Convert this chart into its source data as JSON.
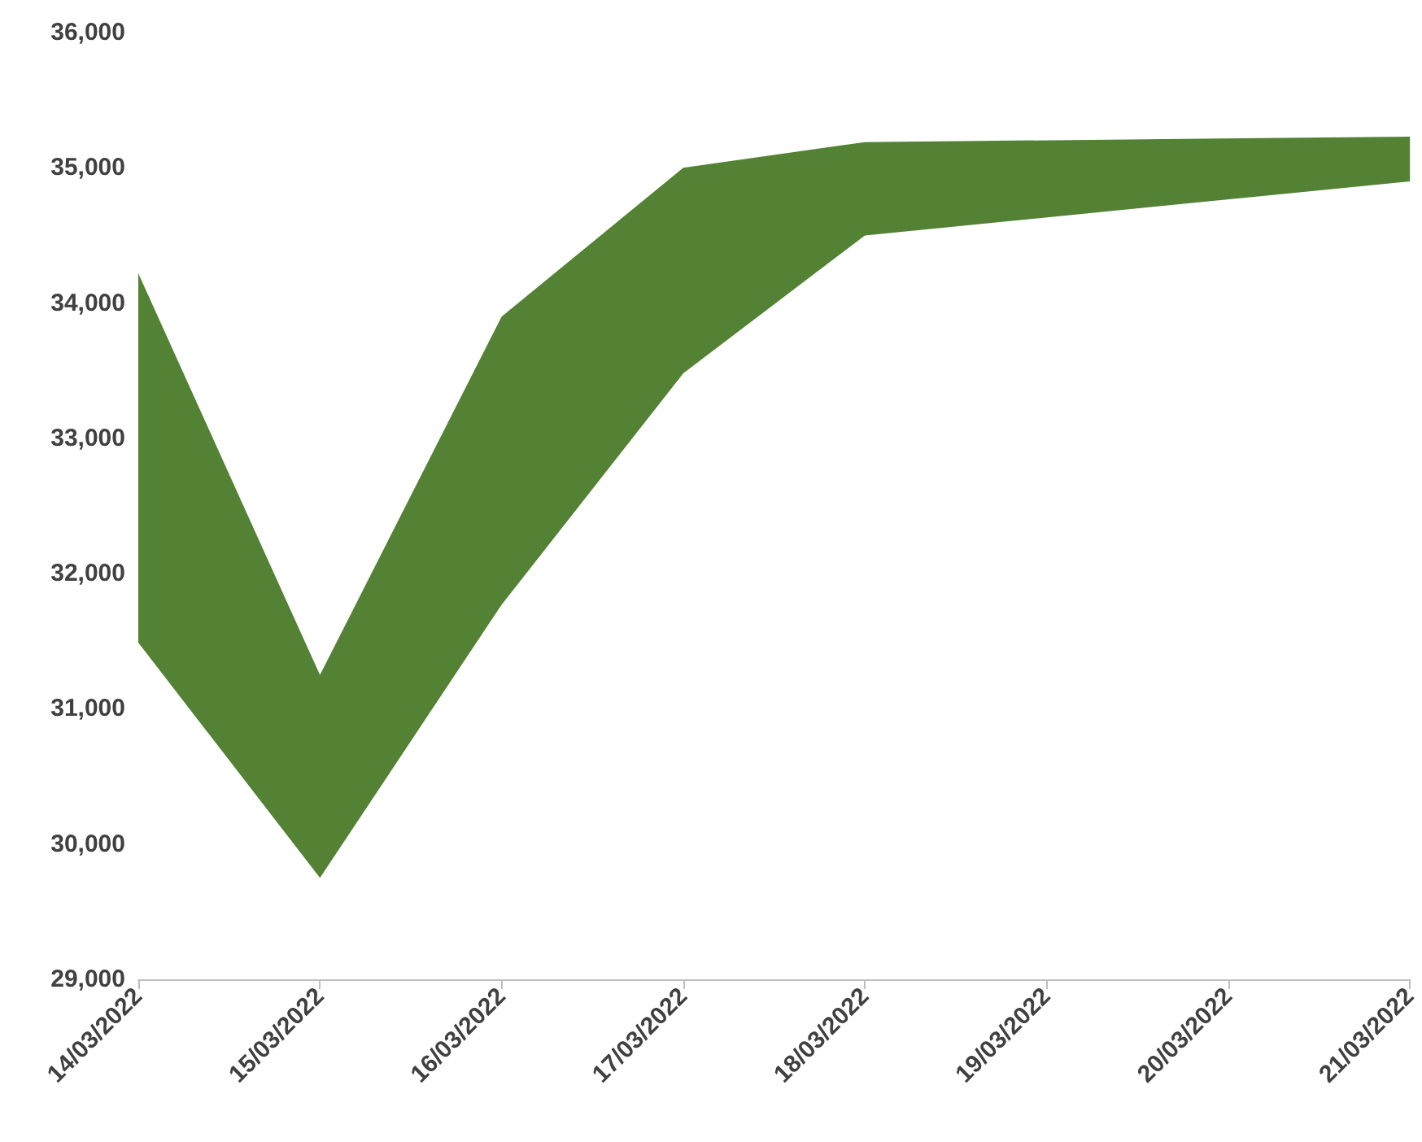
{
  "chart_data": {
    "type": "area",
    "x": [
      "2022-03-14",
      "2022-03-15",
      "2022-03-16",
      "2022-03-17",
      "2022-03-18",
      "2022-03-21"
    ],
    "series": [
      {
        "color": "#548235",
        "values": [
          null,
          null,
          null,
          null,
          null,
          null
        ],
        "upper": [
          34220,
          31250,
          33900,
          35000,
          35190,
          35230
        ],
        "lower": [
          31490,
          29750,
          31770,
          33480,
          34500,
          34900
        ]
      }
    ],
    "xlim": [
      "2022-03-14",
      "2022-03-21"
    ],
    "xticks": [
      {
        "value": "2022-03-14",
        "label": "14/03/2022"
      },
      {
        "value": "2022-03-15",
        "label": "15/03/2022"
      },
      {
        "value": "2022-03-16",
        "label": "16/03/2022"
      },
      {
        "value": "2022-03-17",
        "label": "17/03/2022"
      },
      {
        "value": "2022-03-18",
        "label": "18/03/2022"
      },
      {
        "value": "2022-03-19",
        "label": "19/03/2022"
      },
      {
        "value": "2022-03-20",
        "label": "20/03/2022"
      },
      {
        "value": "2022-03-21",
        "label": "21/03/2022"
      }
    ],
    "ylim": [
      29000,
      36000
    ],
    "yticks": [
      {
        "value": 29000,
        "label": "29,000"
      },
      {
        "value": 30000,
        "label": "30,000"
      },
      {
        "value": 31000,
        "label": "31,000"
      },
      {
        "value": 32000,
        "label": "32,000"
      },
      {
        "value": 33000,
        "label": "33,000"
      },
      {
        "value": 34000,
        "label": "34,000"
      },
      {
        "value": 35000,
        "label": "35,000"
      },
      {
        "value": 36000,
        "label": "36,000"
      }
    ],
    "grid": false
  }
}
